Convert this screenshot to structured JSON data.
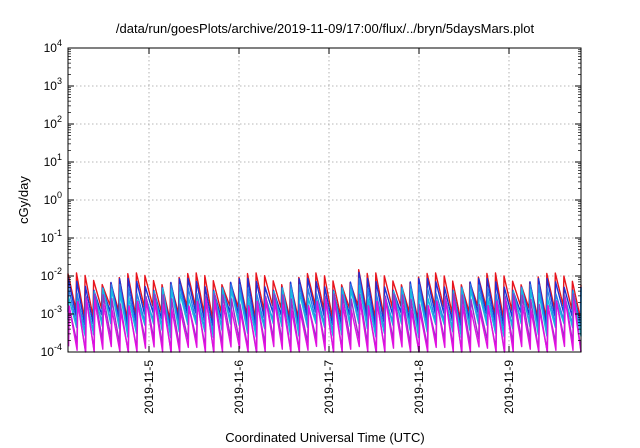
{
  "chart_data": {
    "type": "line",
    "title": "/data/run/goesPlots/archive/2019-11-09/17:00/flux/../bryn/5daysMars.plot",
    "xlabel": "Coordinated Universal Time (UTC)",
    "ylabel": "cGy/day",
    "x_range_days": [
      4.1,
      9.8
    ],
    "ylim": [
      0.0001,
      10000
    ],
    "y_scale": "log",
    "grid": true,
    "x_ticks": [
      {
        "label": "2019-11-5",
        "day": 5
      },
      {
        "label": "2019-11-6",
        "day": 6
      },
      {
        "label": "2019-11-7",
        "day": 7
      },
      {
        "label": "2019-11-8",
        "day": 8
      },
      {
        "label": "2019-11-9",
        "day": 9
      }
    ],
    "y_ticks": [
      {
        "base": "10",
        "exp": "-4",
        "value": 0.0001
      },
      {
        "base": "10",
        "exp": "-3",
        "value": 0.001
      },
      {
        "base": "10",
        "exp": "-2",
        "value": 0.01
      },
      {
        "base": "10",
        "exp": "-1",
        "value": 0.1
      },
      {
        "base": "10",
        "exp": "0",
        "value": 1
      },
      {
        "base": "10",
        "exp": "1",
        "value": 10
      },
      {
        "base": "10",
        "exp": "2",
        "value": 100
      },
      {
        "base": "10",
        "exp": "3",
        "value": 1000
      },
      {
        "base": "10",
        "exp": "4",
        "value": 10000
      }
    ],
    "series": [
      {
        "color": "#e8141c",
        "peak": 0.009,
        "trough": 0.0012,
        "shift": 0.0
      },
      {
        "color": "#1f2fd6",
        "peak": 0.0065,
        "trough": 0.0008,
        "shift": 0.03
      },
      {
        "color": "#2a7fe8",
        "peak": 0.0045,
        "trough": 0.0005,
        "shift": 0.06
      },
      {
        "color": "#18b8e0",
        "peak": 0.0035,
        "trough": 0.0004,
        "shift": 0.09
      },
      {
        "color": "#9b30c8",
        "peak": 0.0025,
        "trough": 0.00016,
        "shift": 0.12
      },
      {
        "color": "#e010e0",
        "peak": 0.0018,
        "trough": 0.0001,
        "shift": 0.15
      }
    ],
    "period_days": 0.095
  }
}
